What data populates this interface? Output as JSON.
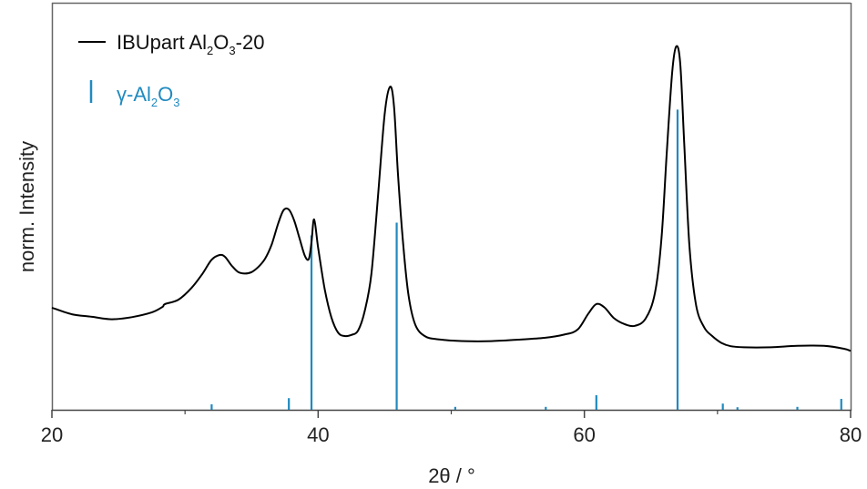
{
  "chart_data": {
    "type": "line",
    "xlabel": "2θ / °",
    "ylabel": "norm. Intensity",
    "xlim": [
      20,
      80
    ],
    "ylim": [
      0,
      1
    ],
    "x_ticks": [
      20,
      40,
      60,
      80
    ],
    "x_minor_ticks": [
      30,
      50,
      70
    ],
    "grid": false,
    "legend_position": "top-left",
    "series": [
      {
        "name": "IBUpart Al2O3-20",
        "type": "line",
        "color": "#000000",
        "x": [
          20.0,
          21.5,
          23.0,
          24.5,
          26.0,
          27.5,
          28.3,
          28.5,
          29.5,
          30.5,
          31.3,
          32.0,
          32.6,
          33.0,
          33.5,
          34.0,
          34.5,
          35.0,
          35.5,
          36.0,
          36.5,
          37.0,
          37.4,
          37.8,
          38.2,
          38.6,
          39.0,
          39.3,
          39.5,
          39.7,
          40.0,
          40.5,
          41.0,
          41.5,
          42.0,
          42.5,
          43.0,
          43.5,
          44.0,
          44.5,
          45.0,
          45.4,
          45.7,
          46.0,
          46.4,
          46.8,
          47.3,
          48.0,
          49.0,
          51.0,
          53.0,
          55.0,
          57.0,
          58.5,
          59.5,
          60.3,
          60.9,
          61.5,
          62.2,
          63.0,
          63.8,
          64.6,
          65.3,
          65.8,
          66.2,
          66.6,
          66.9,
          67.2,
          67.5,
          67.9,
          68.4,
          69.0,
          69.6,
          70.3,
          71.0,
          72.0,
          74.0,
          76.0,
          78.0,
          79.5,
          80.0
        ],
        "values": [
          0.281,
          0.263,
          0.256,
          0.249,
          0.255,
          0.268,
          0.283,
          0.291,
          0.303,
          0.336,
          0.374,
          0.413,
          0.426,
          0.421,
          0.397,
          0.379,
          0.375,
          0.379,
          0.393,
          0.415,
          0.454,
          0.513,
          0.549,
          0.551,
          0.521,
          0.472,
          0.424,
          0.415,
          0.461,
          0.524,
          0.446,
          0.331,
          0.254,
          0.212,
          0.203,
          0.206,
          0.218,
          0.272,
          0.374,
          0.589,
          0.814,
          0.889,
          0.836,
          0.648,
          0.451,
          0.313,
          0.234,
          0.203,
          0.194,
          0.189,
          0.189,
          0.193,
          0.198,
          0.207,
          0.221,
          0.265,
          0.291,
          0.282,
          0.253,
          0.236,
          0.231,
          0.251,
          0.321,
          0.474,
          0.714,
          0.929,
          1.0,
          0.954,
          0.733,
          0.448,
          0.287,
          0.227,
          0.203,
          0.184,
          0.175,
          0.172,
          0.172,
          0.176,
          0.176,
          0.168,
          0.162
        ]
      },
      {
        "name": "γ-Al2O3",
        "type": "stick",
        "color": "#1f8ac0",
        "x": [
          32.0,
          37.8,
          39.5,
          45.9,
          50.3,
          57.1,
          60.9,
          67.0,
          70.4,
          71.5,
          76.0,
          79.3
        ],
        "values": [
          0.015,
          0.032,
          0.48,
          0.515,
          0.008,
          0.008,
          0.04,
          0.826,
          0.017,
          0.007,
          0.008,
          0.03
        ]
      }
    ]
  }
}
